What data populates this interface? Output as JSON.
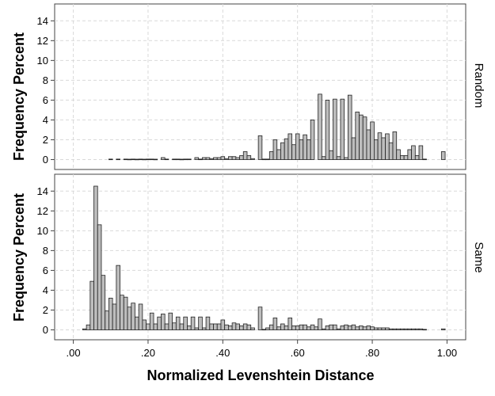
{
  "chart_data": {
    "type": "bar",
    "xlabel": "Normalized Levenshtein Distance",
    "ylabel": "Frequency Percent",
    "xlim": [
      -0.05,
      1.05
    ],
    "x_ticks": [
      ".00",
      ".20",
      ".40",
      ".60",
      ".80",
      "1.00"
    ],
    "x_tick_values": [
      0,
      0.2,
      0.4,
      0.6,
      0.8,
      1.0
    ],
    "ylim": [
      -1.0,
      15.7
    ],
    "y_ticks": [
      "0",
      "2",
      "4",
      "6",
      "8",
      "10",
      "12",
      "14"
    ],
    "y_tick_values": [
      0,
      2,
      4,
      6,
      8,
      10,
      12,
      14
    ],
    "bin_width": 0.01,
    "grid": true,
    "bar_color": "#bdbdbd",
    "panels": [
      {
        "strip_label": "Random",
        "bins": [
          {
            "x": 0.1,
            "y": 0.05
          },
          {
            "x": 0.12,
            "y": 0.05
          },
          {
            "x": 0.14,
            "y": 0.05
          },
          {
            "x": 0.15,
            "y": 0.04
          },
          {
            "x": 0.16,
            "y": 0.05
          },
          {
            "x": 0.17,
            "y": 0.04
          },
          {
            "x": 0.18,
            "y": 0.05
          },
          {
            "x": 0.19,
            "y": 0.04
          },
          {
            "x": 0.2,
            "y": 0.05
          },
          {
            "x": 0.21,
            "y": 0.05
          },
          {
            "x": 0.22,
            "y": 0.04
          },
          {
            "x": 0.24,
            "y": 0.2
          },
          {
            "x": 0.25,
            "y": 0.05
          },
          {
            "x": 0.27,
            "y": 0.05
          },
          {
            "x": 0.28,
            "y": 0.05
          },
          {
            "x": 0.29,
            "y": 0.04
          },
          {
            "x": 0.3,
            "y": 0.05
          },
          {
            "x": 0.31,
            "y": 0.05
          },
          {
            "x": 0.33,
            "y": 0.2
          },
          {
            "x": 0.34,
            "y": 0.05
          },
          {
            "x": 0.35,
            "y": 0.2
          },
          {
            "x": 0.36,
            "y": 0.2
          },
          {
            "x": 0.37,
            "y": 0.1
          },
          {
            "x": 0.38,
            "y": 0.2
          },
          {
            "x": 0.39,
            "y": 0.2
          },
          {
            "x": 0.4,
            "y": 0.3
          },
          {
            "x": 0.41,
            "y": 0.1
          },
          {
            "x": 0.42,
            "y": 0.3
          },
          {
            "x": 0.43,
            "y": 0.3
          },
          {
            "x": 0.44,
            "y": 0.2
          },
          {
            "x": 0.45,
            "y": 0.4
          },
          {
            "x": 0.46,
            "y": 0.8
          },
          {
            "x": 0.47,
            "y": 0.4
          },
          {
            "x": 0.48,
            "y": 0.1
          },
          {
            "x": 0.5,
            "y": 2.4
          },
          {
            "x": 0.51,
            "y": 0.05
          },
          {
            "x": 0.52,
            "y": 0.05
          },
          {
            "x": 0.53,
            "y": 0.8
          },
          {
            "x": 0.54,
            "y": 2.0
          },
          {
            "x": 0.55,
            "y": 1.0
          },
          {
            "x": 0.56,
            "y": 1.7
          },
          {
            "x": 0.57,
            "y": 2.1
          },
          {
            "x": 0.58,
            "y": 2.6
          },
          {
            "x": 0.59,
            "y": 1.5
          },
          {
            "x": 0.6,
            "y": 2.6
          },
          {
            "x": 0.61,
            "y": 2.0
          },
          {
            "x": 0.62,
            "y": 2.5
          },
          {
            "x": 0.63,
            "y": 2.0
          },
          {
            "x": 0.64,
            "y": 4.0
          },
          {
            "x": 0.66,
            "y": 6.6
          },
          {
            "x": 0.67,
            "y": 0.3
          },
          {
            "x": 0.68,
            "y": 6.0
          },
          {
            "x": 0.69,
            "y": 0.9
          },
          {
            "x": 0.7,
            "y": 6.1
          },
          {
            "x": 0.71,
            "y": 0.3
          },
          {
            "x": 0.72,
            "y": 6.1
          },
          {
            "x": 0.73,
            "y": 0.2
          },
          {
            "x": 0.74,
            "y": 6.5
          },
          {
            "x": 0.75,
            "y": 2.2
          },
          {
            "x": 0.76,
            "y": 4.8
          },
          {
            "x": 0.77,
            "y": 4.5
          },
          {
            "x": 0.78,
            "y": 4.3
          },
          {
            "x": 0.79,
            "y": 3.0
          },
          {
            "x": 0.8,
            "y": 3.8
          },
          {
            "x": 0.81,
            "y": 2.0
          },
          {
            "x": 0.82,
            "y": 2.7
          },
          {
            "x": 0.83,
            "y": 2.2
          },
          {
            "x": 0.84,
            "y": 2.6
          },
          {
            "x": 0.85,
            "y": 1.7
          },
          {
            "x": 0.86,
            "y": 2.8
          },
          {
            "x": 0.87,
            "y": 1.0
          },
          {
            "x": 0.88,
            "y": 0.4
          },
          {
            "x": 0.89,
            "y": 0.4
          },
          {
            "x": 0.9,
            "y": 1.0
          },
          {
            "x": 0.91,
            "y": 1.4
          },
          {
            "x": 0.92,
            "y": 0.4
          },
          {
            "x": 0.93,
            "y": 1.4
          },
          {
            "x": 0.94,
            "y": 0.05
          },
          {
            "x": 0.99,
            "y": 0.8
          }
        ]
      },
      {
        "strip_label": "Same",
        "bins": [
          {
            "x": 0.03,
            "y": 0.1
          },
          {
            "x": 0.04,
            "y": 0.5
          },
          {
            "x": 0.05,
            "y": 4.9
          },
          {
            "x": 0.06,
            "y": 14.5
          },
          {
            "x": 0.07,
            "y": 10.6
          },
          {
            "x": 0.08,
            "y": 5.5
          },
          {
            "x": 0.09,
            "y": 1.9
          },
          {
            "x": 0.1,
            "y": 3.2
          },
          {
            "x": 0.11,
            "y": 2.6
          },
          {
            "x": 0.12,
            "y": 6.5
          },
          {
            "x": 0.13,
            "y": 3.5
          },
          {
            "x": 0.14,
            "y": 3.3
          },
          {
            "x": 0.15,
            "y": 2.3
          },
          {
            "x": 0.16,
            "y": 2.7
          },
          {
            "x": 0.17,
            "y": 1.3
          },
          {
            "x": 0.18,
            "y": 2.6
          },
          {
            "x": 0.19,
            "y": 1.0
          },
          {
            "x": 0.2,
            "y": 0.6
          },
          {
            "x": 0.21,
            "y": 1.7
          },
          {
            "x": 0.22,
            "y": 0.6
          },
          {
            "x": 0.23,
            "y": 1.3
          },
          {
            "x": 0.24,
            "y": 1.6
          },
          {
            "x": 0.25,
            "y": 0.6
          },
          {
            "x": 0.26,
            "y": 1.7
          },
          {
            "x": 0.27,
            "y": 0.7
          },
          {
            "x": 0.28,
            "y": 1.3
          },
          {
            "x": 0.29,
            "y": 0.6
          },
          {
            "x": 0.3,
            "y": 1.3
          },
          {
            "x": 0.31,
            "y": 0.4
          },
          {
            "x": 0.32,
            "y": 1.3
          },
          {
            "x": 0.33,
            "y": 0.2
          },
          {
            "x": 0.34,
            "y": 1.3
          },
          {
            "x": 0.35,
            "y": 0.2
          },
          {
            "x": 0.36,
            "y": 1.3
          },
          {
            "x": 0.37,
            "y": 0.6
          },
          {
            "x": 0.38,
            "y": 0.6
          },
          {
            "x": 0.39,
            "y": 0.6
          },
          {
            "x": 0.4,
            "y": 1.0
          },
          {
            "x": 0.41,
            "y": 0.5
          },
          {
            "x": 0.42,
            "y": 0.4
          },
          {
            "x": 0.43,
            "y": 0.7
          },
          {
            "x": 0.44,
            "y": 0.6
          },
          {
            "x": 0.45,
            "y": 0.4
          },
          {
            "x": 0.46,
            "y": 0.6
          },
          {
            "x": 0.47,
            "y": 0.5
          },
          {
            "x": 0.48,
            "y": 0.2
          },
          {
            "x": 0.5,
            "y": 2.3
          },
          {
            "x": 0.51,
            "y": 0.05
          },
          {
            "x": 0.52,
            "y": 0.2
          },
          {
            "x": 0.53,
            "y": 0.5
          },
          {
            "x": 0.54,
            "y": 1.2
          },
          {
            "x": 0.55,
            "y": 0.3
          },
          {
            "x": 0.56,
            "y": 0.6
          },
          {
            "x": 0.57,
            "y": 0.4
          },
          {
            "x": 0.58,
            "y": 1.2
          },
          {
            "x": 0.59,
            "y": 0.4
          },
          {
            "x": 0.6,
            "y": 0.4
          },
          {
            "x": 0.61,
            "y": 0.5
          },
          {
            "x": 0.62,
            "y": 0.5
          },
          {
            "x": 0.63,
            "y": 0.3
          },
          {
            "x": 0.64,
            "y": 0.5
          },
          {
            "x": 0.65,
            "y": 0.3
          },
          {
            "x": 0.66,
            "y": 1.1
          },
          {
            "x": 0.67,
            "y": 0.1
          },
          {
            "x": 0.68,
            "y": 0.4
          },
          {
            "x": 0.69,
            "y": 0.5
          },
          {
            "x": 0.7,
            "y": 0.5
          },
          {
            "x": 0.71,
            "y": 0.1
          },
          {
            "x": 0.72,
            "y": 0.4
          },
          {
            "x": 0.73,
            "y": 0.5
          },
          {
            "x": 0.74,
            "y": 0.4
          },
          {
            "x": 0.75,
            "y": 0.5
          },
          {
            "x": 0.76,
            "y": 0.3
          },
          {
            "x": 0.77,
            "y": 0.4
          },
          {
            "x": 0.78,
            "y": 0.3
          },
          {
            "x": 0.79,
            "y": 0.4
          },
          {
            "x": 0.8,
            "y": 0.3
          },
          {
            "x": 0.81,
            "y": 0.2
          },
          {
            "x": 0.82,
            "y": 0.2
          },
          {
            "x": 0.83,
            "y": 0.2
          },
          {
            "x": 0.84,
            "y": 0.2
          },
          {
            "x": 0.85,
            "y": 0.1
          },
          {
            "x": 0.86,
            "y": 0.1
          },
          {
            "x": 0.87,
            "y": 0.1
          },
          {
            "x": 0.88,
            "y": 0.1
          },
          {
            "x": 0.89,
            "y": 0.1
          },
          {
            "x": 0.9,
            "y": 0.1
          },
          {
            "x": 0.91,
            "y": 0.1
          },
          {
            "x": 0.92,
            "y": 0.1
          },
          {
            "x": 0.93,
            "y": 0.1
          },
          {
            "x": 0.94,
            "y": 0.05
          },
          {
            "x": 0.99,
            "y": 0.1
          }
        ]
      }
    ]
  }
}
